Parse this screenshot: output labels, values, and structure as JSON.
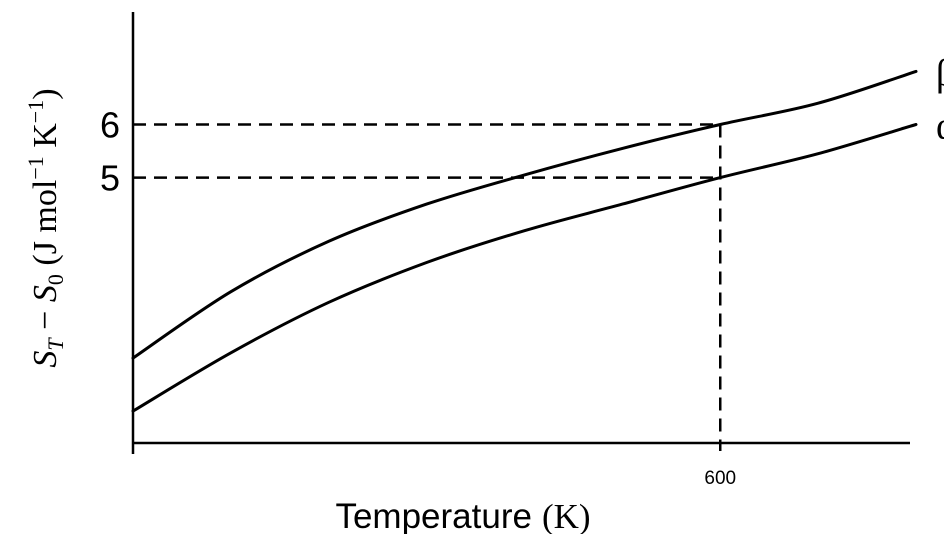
{
  "chart_data": {
    "type": "line",
    "title": "",
    "xlabel_word": "Temperature",
    "xlabel_unit": "(K)",
    "ylabel_parts": {
      "s1": "S",
      "sub1": "T",
      "minus": " − ",
      "s2": "S",
      "sub2": "0",
      "unit_open": " (J mol",
      "exp1": "−1",
      "unit_mid": " K",
      "exp2": "−1",
      "unit_close": ")"
    },
    "x_ticks": [
      {
        "value": 600,
        "label": "600"
      }
    ],
    "y_ticks": [
      {
        "value": 5,
        "label": "5"
      },
      {
        "value": 6,
        "label": "6"
      }
    ],
    "xlim": [
      0,
      800
    ],
    "ylim": [
      0,
      8.1
    ],
    "series": [
      {
        "name": "β",
        "x": [
          0,
          100,
          200,
          300,
          400,
          500,
          600,
          700,
          800
        ],
        "y": [
          1.6,
          2.85,
          3.8,
          4.5,
          5.05,
          5.55,
          6.0,
          6.4,
          7.0
        ]
      },
      {
        "name": "α",
        "x": [
          0,
          100,
          200,
          300,
          400,
          500,
          600,
          700,
          800
        ],
        "y": [
          0.6,
          1.7,
          2.65,
          3.4,
          4.0,
          4.5,
          5.0,
          5.45,
          6.0
        ]
      }
    ],
    "reference_lines": [
      {
        "type": "horizontal",
        "y": 6,
        "x_to": 600,
        "style": "dashed"
      },
      {
        "type": "horizontal",
        "y": 5,
        "x_to": 600,
        "style": "dashed"
      },
      {
        "type": "vertical",
        "x": 600,
        "y_to": 6,
        "style": "dashed"
      }
    ],
    "grid": false,
    "legend": "none",
    "colors": {
      "line": "#000000",
      "axis": "#000000",
      "background": "#ffffff"
    }
  }
}
